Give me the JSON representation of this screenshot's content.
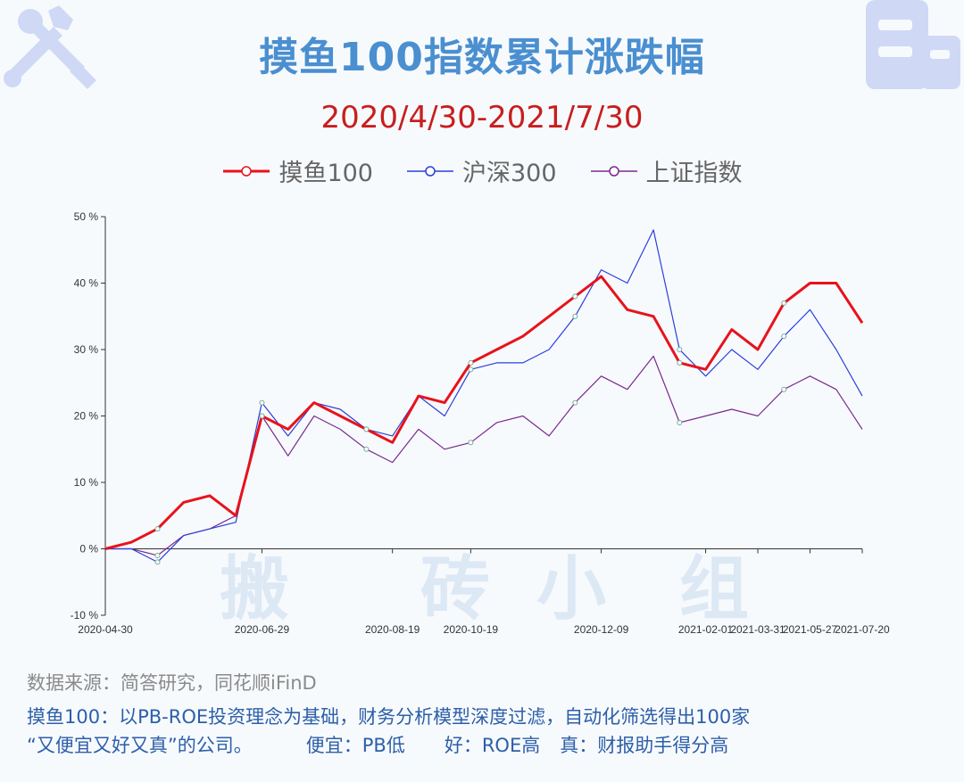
{
  "title": "摸鱼100指数累计涨跌幅",
  "subtitle": "2020/4/30-2021/7/30",
  "watermark": [
    "搬",
    "砖",
    "小",
    "组"
  ],
  "source": "数据来源：简答研究，同花顺iFinD",
  "desc": {
    "line1": "摸鱼100：以PB-ROE投资理念为基础，财务分析模型深度过滤，自动化筛选得出100家",
    "line2a": "“又便宜又好又真”的公司。",
    "line2b": "便宜：PB低",
    "line2c": "好：ROE高",
    "line2d": "真：财报助手得分高"
  },
  "colors": {
    "moyu": "#e8121b",
    "hs300": "#2b3fd9",
    "sz": "#7b2a8f",
    "title": "#4a8fd0"
  },
  "chart_data": {
    "type": "line",
    "title": "摸鱼100指数累计涨跌幅",
    "ylim": [
      -10,
      50
    ],
    "yticks": [
      "-10 %",
      "0 %",
      "10 %",
      "20 %",
      "30 %",
      "40 %",
      "50 %"
    ],
    "yticks_values": [
      -10,
      0,
      10,
      20,
      30,
      40,
      50
    ],
    "xticks": [
      "2020-04-30",
      "2020-06-29",
      "2020-08-19",
      "2020-10-19",
      "2020-12-09",
      "2021-02-01",
      "2021-03-31",
      "2021-05-27",
      "2021-07-20"
    ],
    "x_count": 30,
    "xtick_index": [
      0,
      6,
      11,
      14,
      19,
      23,
      25,
      27,
      29
    ],
    "series": [
      {
        "name": "摸鱼100",
        "color": "#e8121b",
        "values": [
          0,
          1,
          3,
          7,
          8,
          5,
          20,
          18,
          22,
          20,
          18,
          16,
          23,
          22,
          28,
          30,
          32,
          35,
          38,
          41,
          36,
          35,
          28,
          27,
          33,
          30,
          37,
          40,
          40,
          34
        ]
      },
      {
        "name": "沪深300",
        "color": "#2b3fd9",
        "values": [
          0,
          0,
          -2,
          2,
          3,
          4,
          22,
          17,
          22,
          21,
          18,
          17,
          23,
          20,
          27,
          28,
          28,
          30,
          35,
          42,
          40,
          48,
          30,
          26,
          30,
          27,
          32,
          36,
          30,
          23
        ]
      },
      {
        "name": "上证指数",
        "color": "#7b2a8f",
        "values": [
          0,
          0,
          -1,
          2,
          3,
          5,
          20,
          14,
          20,
          18,
          15,
          13,
          18,
          15,
          16,
          19,
          20,
          17,
          22,
          26,
          24,
          29,
          19,
          20,
          21,
          20,
          24,
          26,
          24,
          18
        ]
      }
    ]
  }
}
